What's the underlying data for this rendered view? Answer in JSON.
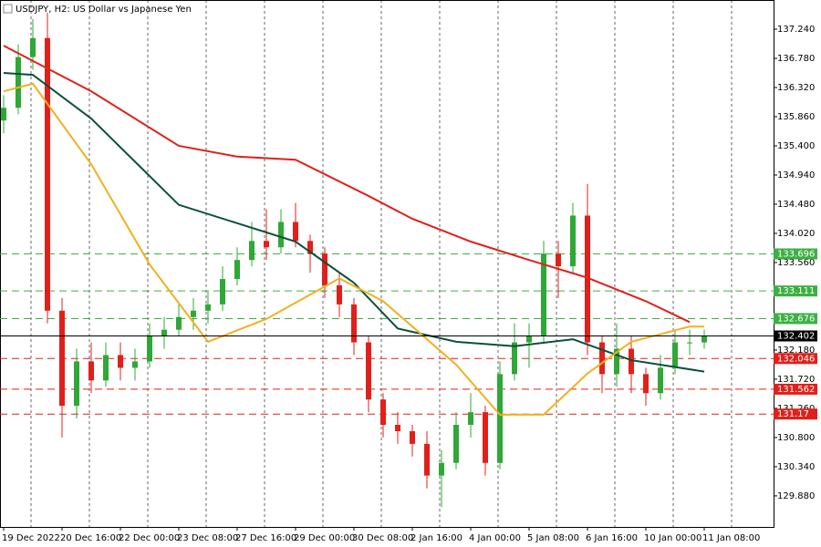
{
  "chart_data": {
    "type": "candlestick",
    "title": "USDJPY, H2:",
    "subtitle": "US Dollar vs Japanese Yen",
    "categories": [
      "19 Dec 2022",
      null,
      null,
      null,
      "20 Dec 16:00",
      null,
      null,
      null,
      "22 Dec 00:00",
      null,
      null,
      null,
      "23 Dec 08:00",
      null,
      null,
      null,
      "27 Dec 16:00",
      null,
      null,
      null,
      "29 Dec 00:00",
      null,
      null,
      null,
      "30 Dec 08:00",
      null,
      null,
      null,
      "2 Jan 16:00",
      null,
      null,
      null,
      "4 Jan 00:00",
      null,
      null,
      null,
      "5 Jan 08:00",
      null,
      null,
      null,
      "6 Jan 16:00",
      null,
      null,
      null,
      "10 Jan 00:00",
      null,
      null,
      null,
      "11 Jan 08:00"
    ],
    "ohlc": [
      [
        135.8,
        136.2,
        135.6,
        136.0
      ],
      [
        136.0,
        137.0,
        135.9,
        136.8
      ],
      [
        136.8,
        137.4,
        136.6,
        137.1
      ],
      [
        137.1,
        137.5,
        132.6,
        132.8
      ],
      [
        132.8,
        133.0,
        130.8,
        131.3
      ],
      [
        131.3,
        132.2,
        131.1,
        132.0
      ],
      [
        132.0,
        132.3,
        131.5,
        131.7
      ],
      [
        131.7,
        132.3,
        131.6,
        132.1
      ],
      [
        132.1,
        132.3,
        131.7,
        131.9
      ],
      [
        131.9,
        132.2,
        131.7,
        132.0
      ],
      [
        132.0,
        132.6,
        131.9,
        132.4
      ],
      [
        132.4,
        132.7,
        132.2,
        132.5
      ],
      [
        132.5,
        132.9,
        132.4,
        132.7
      ],
      [
        132.7,
        133.0,
        132.5,
        132.8
      ],
      [
        132.8,
        133.1,
        132.6,
        132.9
      ],
      [
        132.9,
        133.5,
        132.8,
        133.3
      ],
      [
        133.3,
        133.8,
        133.2,
        133.6
      ],
      [
        133.6,
        134.2,
        133.5,
        133.9
      ],
      [
        133.9,
        134.4,
        133.6,
        133.8
      ],
      [
        133.8,
        134.4,
        133.7,
        134.2
      ],
      [
        134.2,
        134.5,
        133.8,
        133.9
      ],
      [
        133.9,
        134.0,
        133.4,
        133.7
      ],
      [
        133.7,
        133.8,
        133.0,
        133.2
      ],
      [
        133.2,
        133.4,
        132.7,
        132.9
      ],
      [
        132.9,
        133.0,
        132.1,
        132.3
      ],
      [
        132.3,
        132.4,
        131.2,
        131.4
      ],
      [
        131.4,
        131.5,
        130.8,
        131.0
      ],
      [
        131.0,
        131.2,
        130.7,
        130.9
      ],
      [
        130.9,
        131.0,
        130.5,
        130.7
      ],
      [
        130.7,
        130.9,
        130.0,
        130.2
      ],
      [
        130.2,
        130.6,
        129.7,
        130.4
      ],
      [
        130.4,
        131.2,
        130.3,
        131.0
      ],
      [
        131.0,
        131.5,
        130.8,
        131.2
      ],
      [
        131.2,
        131.3,
        130.2,
        130.4
      ],
      [
        130.4,
        132.0,
        130.3,
        131.8
      ],
      [
        131.8,
        132.6,
        131.7,
        132.3
      ],
      [
        132.3,
        132.6,
        131.9,
        132.4
      ],
      [
        132.4,
        133.9,
        132.3,
        133.7
      ],
      [
        133.7,
        133.9,
        133.0,
        133.5
      ],
      [
        133.5,
        134.5,
        133.4,
        134.3
      ],
      [
        134.3,
        134.8,
        132.1,
        132.3
      ],
      [
        132.3,
        132.4,
        131.5,
        131.8
      ],
      [
        131.8,
        132.6,
        131.6,
        132.2
      ],
      [
        132.2,
        132.4,
        131.5,
        131.8
      ],
      [
        131.8,
        131.9,
        131.3,
        131.5
      ],
      [
        131.5,
        132.1,
        131.4,
        131.9
      ],
      [
        131.9,
        132.5,
        131.8,
        132.3
      ],
      [
        132.3,
        132.5,
        132.1,
        132.3
      ],
      [
        132.3,
        132.5,
        132.2,
        132.4
      ]
    ],
    "up_color": "#2ea836",
    "down_color": "#e0201b",
    "series": [
      {
        "color": "#e0201b",
        "x": [
          0,
          6,
          12,
          16,
          20,
          25,
          28,
          32,
          36,
          40,
          44,
          47
        ],
        "values": [
          136.98,
          136.26,
          135.4,
          135.23,
          135.18,
          134.61,
          134.25,
          133.89,
          133.6,
          133.32,
          132.95,
          132.62
        ]
      },
      {
        "color": "#0b4f3a",
        "x": [
          0,
          2,
          6,
          12,
          16,
          20,
          24,
          27,
          31,
          35,
          39,
          43,
          48
        ],
        "values": [
          136.55,
          136.52,
          135.83,
          134.47,
          134.18,
          133.89,
          133.24,
          132.52,
          132.31,
          132.24,
          132.35,
          132.02,
          131.84
        ]
      },
      {
        "color": "#f2b01e",
        "x": [
          0,
          2,
          6,
          10,
          14,
          18,
          23,
          26,
          31,
          34,
          37,
          40,
          43,
          47,
          48
        ],
        "values": [
          136.26,
          136.38,
          135.11,
          133.53,
          132.31,
          132.67,
          133.31,
          132.95,
          131.95,
          131.16,
          131.16,
          131.81,
          132.31,
          132.55,
          132.55
        ]
      }
    ],
    "levels": [
      {
        "value": 133.696,
        "color": "#3cb043"
      },
      {
        "value": 133.111,
        "color": "#3cb043"
      },
      {
        "value": 132.676,
        "color": "#3cb043"
      },
      {
        "value": 132.046,
        "color": "#e0201b"
      },
      {
        "value": 131.562,
        "color": "#e0201b"
      },
      {
        "value": 131.17,
        "color": "#e0201b"
      }
    ],
    "price": 132.402,
    "price_color": "#000000",
    "ylim": [
      129.39,
      137.7
    ],
    "yticks": [
      {
        "value": 137.24,
        "label": "137.240"
      },
      {
        "value": 136.78,
        "label": "136.780"
      },
      {
        "value": 136.32,
        "label": "136.320"
      },
      {
        "value": 135.86,
        "label": "135.860"
      },
      {
        "value": 135.4,
        "label": "135.400"
      },
      {
        "value": 134.94,
        "label": "134.940"
      },
      {
        "value": 134.48,
        "label": "134.480"
      },
      {
        "value": 134.02,
        "label": "134.020"
      },
      {
        "value": 133.56,
        "label": "133.560"
      },
      {
        "value": 132.18,
        "label": "132.180"
      },
      {
        "value": 131.72,
        "label": "131.720"
      },
      {
        "value": 131.26,
        "label": "131.260"
      },
      {
        "value": 130.8,
        "label": "130.800"
      },
      {
        "value": 130.34,
        "label": "130.340"
      },
      {
        "value": 129.88,
        "label": "129.880"
      }
    ],
    "grid": true
  }
}
